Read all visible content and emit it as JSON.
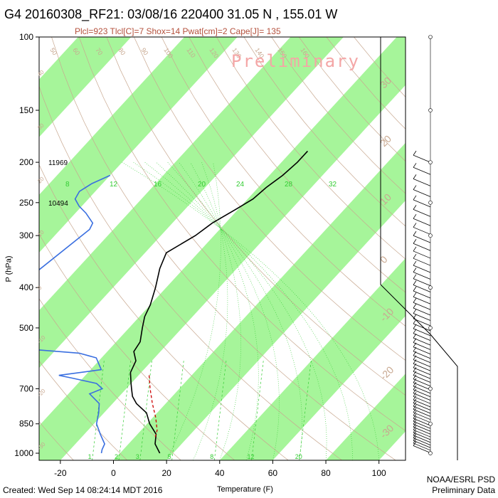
{
  "header": {
    "title": "G4 20160308_RF21: 03/08/16 220400  31.05 N , 155.01 W",
    "subtitle": "Plcl=923 Tlcl[C]=7 Shox=14 Pwat[cm]=2 Cape[J]= 135",
    "watermark": "Preliminary"
  },
  "footer": {
    "created": "Created: Wed Sep 14 08:24:14 MDT 2016",
    "credit_line1": "NOAA/ESRL PSD",
    "credit_line2": "Preliminary Data"
  },
  "colors": {
    "band_green": "#a6f59a",
    "temperature": "#000000",
    "dewpoint": "#3a6fe0",
    "parcel": "#cc0000",
    "mixing_ratio": "#33cc33",
    "adiabat": "#c8a890"
  },
  "chart_data": {
    "type": "skew-t",
    "title": "G4 20160308_RF21: 03/08/16 220400  31.05 N , 155.01 W",
    "xlabel": "Temperature (F)",
    "ylabel": "P (hPa)",
    "x_ticks": [
      -20,
      0,
      20,
      40,
      60,
      80,
      100
    ],
    "y_ticks": [
      100,
      150,
      200,
      250,
      300,
      400,
      500,
      700,
      850,
      1000
    ],
    "xlim": [
      -28,
      110
    ],
    "ylim": [
      1040,
      100
    ],
    "height_labels": [
      {
        "p": 200,
        "label": "11969"
      },
      {
        "p": 250,
        "label": "10494"
      }
    ],
    "mixing_ratio_labels_upper": [
      "8",
      "12",
      "16",
      "20",
      "24",
      "28",
      "32"
    ],
    "mixing_ratio_labels_lower": [
      "1",
      "2",
      "3",
      "5",
      "8",
      "12",
      "20"
    ],
    "theta_labels_upper": [
      "50",
      "60",
      "70",
      "80",
      "90",
      "100",
      "110",
      "120",
      "130",
      "140",
      "150",
      "160"
    ],
    "theta_labels_left": [
      "40",
      "30",
      "20",
      "10",
      "0",
      "-10",
      "-20",
      "-30"
    ],
    "theta_labels_right": [
      "30",
      "20",
      "10",
      "0",
      "-10",
      "-20",
      "-30"
    ],
    "temperature_series": {
      "p": [
        188,
        200,
        215,
        230,
        245,
        260,
        280,
        300,
        330,
        360,
        400,
        440,
        470,
        500,
        540,
        570,
        600,
        640,
        680,
        700,
        730,
        760,
        800,
        850,
        900,
        950,
        1000
      ],
      "t": [
        -34,
        -34,
        -35,
        -37,
        -38,
        -41,
        -45,
        -47,
        -52,
        -49,
        -44,
        -40,
        -38,
        -35,
        -31,
        -30,
        -26,
        -24,
        -20,
        -18,
        -15,
        -11,
        -4,
        1,
        7,
        10,
        15
      ]
    },
    "dewpoint_series": {
      "p": [
        215,
        225,
        235,
        245,
        255,
        265,
        280,
        290,
        540,
        545,
        555,
        575,
        590,
        630,
        650,
        660,
        680,
        700,
        720,
        760,
        800,
        850,
        900,
        950,
        980,
        1000
      ],
      "t": [
        -100,
        -104,
        -106,
        -105,
        -101,
        -96,
        -90,
        -89,
        -103,
        -99,
        -83,
        -50,
        -42,
        -36,
        -50,
        -44,
        -33,
        -29,
        -32,
        -25,
        -22,
        -19,
        -14,
        -9,
        -8,
        -7
      ]
    },
    "parcel_series": {
      "p": [
        650,
        700,
        760,
        820,
        880,
        920
      ],
      "t": [
        -16,
        -11,
        -5,
        1,
        6,
        8
      ]
    }
  }
}
